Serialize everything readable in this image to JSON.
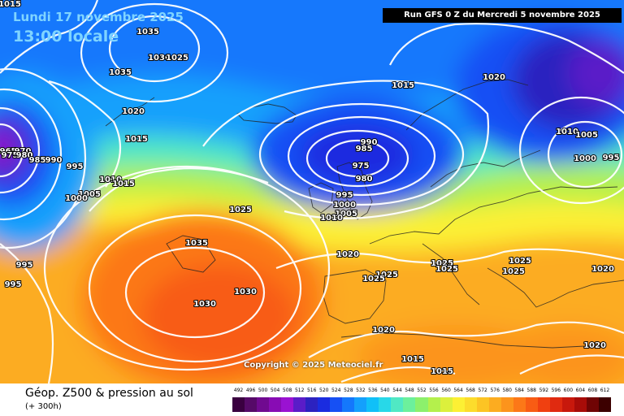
{
  "overlay": {
    "valid_date": "Lundi 17 novembre 2025",
    "local_time": "13:00 locale",
    "run_info": "Run GFS 0 Z du Mercredi 5 novembre 2025",
    "copyright": "Copyright © 2025 Meteociel.fr"
  },
  "product": {
    "title": "Géop. Z500 & pression au sol",
    "lead_time": "(+ 300h)"
  },
  "legend": {
    "values": [
      "492",
      "496",
      "500",
      "504",
      "508",
      "512",
      "516",
      "520",
      "524",
      "528",
      "532",
      "536",
      "540",
      "544",
      "548",
      "552",
      "556",
      "560",
      "564",
      "568",
      "572",
      "576",
      "580",
      "584",
      "588",
      "592",
      "596",
      "600",
      "604",
      "608",
      "612"
    ],
    "colors": [
      "#3a0040",
      "#560a68",
      "#700a90",
      "#880cb4",
      "#9a12d2",
      "#5a1cc8",
      "#2c22c0",
      "#1a2ce0",
      "#1650f4",
      "#1478fc",
      "#14a0fc",
      "#10c0f8",
      "#28d8e8",
      "#50e8c4",
      "#6cf09c",
      "#8cf06c",
      "#b4f04c",
      "#dcf03c",
      "#fcf034",
      "#fcdc2c",
      "#fcc424",
      "#fcac20",
      "#fc941c",
      "#fc7818",
      "#f85c14",
      "#f04010",
      "#e02a10",
      "#c8180c",
      "#a80c08",
      "#700404",
      "#3c0000"
    ]
  },
  "isobar_labels": [
    {
      "text": "1015"
    },
    {
      "text": "1035"
    },
    {
      "text": "1030"
    },
    {
      "text": "1025"
    },
    {
      "text": "1035"
    },
    {
      "text": "1020"
    },
    {
      "text": "1015"
    },
    {
      "text": "965"
    },
    {
      "text": "970"
    },
    {
      "text": "975"
    },
    {
      "text": "980"
    },
    {
      "text": "985"
    },
    {
      "text": "990"
    },
    {
      "text": "995"
    },
    {
      "text": "1010"
    },
    {
      "text": "1015"
    },
    {
      "text": "1005"
    },
    {
      "text": "1000"
    },
    {
      "text": "1025"
    },
    {
      "text": "1035"
    },
    {
      "text": "995"
    },
    {
      "text": "995"
    },
    {
      "text": "1030"
    },
    {
      "text": "1030"
    },
    {
      "text": "1015"
    },
    {
      "text": "990"
    },
    {
      "text": "985"
    },
    {
      "text": "975"
    },
    {
      "text": "980"
    },
    {
      "text": "995"
    },
    {
      "text": "1000"
    },
    {
      "text": "1005"
    },
    {
      "text": "1010"
    },
    {
      "text": "1020"
    },
    {
      "text": "1025"
    },
    {
      "text": "1025"
    },
    {
      "text": "1025"
    },
    {
      "text": "1025"
    },
    {
      "text": "1025"
    },
    {
      "text": "1025"
    },
    {
      "text": "1020"
    },
    {
      "text": "1020"
    },
    {
      "text": "1015"
    },
    {
      "text": "1015"
    },
    {
      "text": "1020"
    },
    {
      "text": "1020"
    },
    {
      "text": "1010"
    },
    {
      "text": "1005"
    },
    {
      "text": "1000"
    },
    {
      "text": "995"
    }
  ]
}
